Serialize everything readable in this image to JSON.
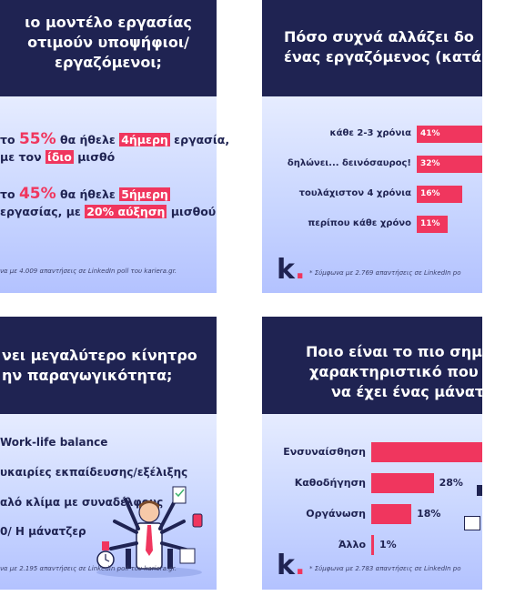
{
  "panels": {
    "tl": {
      "title_lines": [
        "ιο μοντέλο εργασίας",
        "οτιμούν υποψήφιοι/",
        "εργαζόμενοι;"
      ],
      "statements": [
        {
          "prefix": "το",
          "pct": "55%",
          "mid": "θα ήθελε",
          "highlight1": "4ήμερη",
          "after1": "εργασία,",
          "line2_prefix": "με τον",
          "highlight2": "ίδιο",
          "line2_after": "μισθό"
        },
        {
          "prefix": "το",
          "pct": "45%",
          "mid": "θα ήθελε",
          "highlight1": "5ήμερη",
          "after1": "",
          "line2_prefix": "εργασίας, με",
          "highlight2": "20% αύξηση",
          "line2_after": "μισθού"
        }
      ],
      "footnote": "να με 4.009 απαντήσεις σε LinkedIn poll του kariera.gr."
    },
    "tr": {
      "title_lines": [
        "Πόσο συχνά αλλάζει δο",
        "ένας εργαζόμενος (κατά"
      ],
      "logo": "k",
      "footnote": "* Σύμφωνα με 2.769 απαντήσεις σε LinkedIn po"
    },
    "bl": {
      "title_lines": [
        "νει μεγαλύτερο κίνητρο",
        "ην παραγωγικότητα;"
      ],
      "items": [
        "Work-life balance",
        "υκαιρίες εκπαίδευσης/εξέλιξης",
        "αλό κλίμα με συναδέλφους",
        "0/ Η μάνατζερ"
      ],
      "footnote": "να με 2.195 απαντήσεις σε LinkedIn poll του kariera.gr."
    },
    "br": {
      "title_lines": [
        "Ποιο είναι το πιο σημαν",
        "χαρακτηριστικό που πρ",
        "να έχει ένας μάνατζε"
      ],
      "logo": "k",
      "footnote": "* Σύμφωνα με 2.783 απαντήσεις σε LinkedIn po"
    }
  },
  "chart_data": [
    {
      "type": "bar",
      "orientation": "horizontal",
      "title": "Πόσο συχνά αλλάζει δο… ένας εργαζόμενος (κατά…",
      "categories": [
        "κάθε 2-3 χρόνια",
        "δηλώνει... δεινόσαυρος!",
        "τουλάχιστον 4 χρόνια",
        "περίπου κάθε χρόνο"
      ],
      "values": [
        41,
        32,
        16,
        11
      ],
      "value_labels": [
        "41%",
        "32%",
        "16%",
        "11%"
      ],
      "color": "#f0365e"
    },
    {
      "type": "bar",
      "orientation": "horizontal",
      "title": "Ποιο είναι το πιο σημαν… χαρακτηριστικό που πρ… να έχει ένας μάνατζε…",
      "categories": [
        "Ενσυναίσθηση",
        "Καθοδήγηση",
        "Οργάνωση",
        "Άλλο"
      ],
      "values": [
        53,
        28,
        18,
        1
      ],
      "value_labels": [
        "",
        "28%",
        "18%",
        "1%"
      ],
      "color": "#f0365e"
    }
  ]
}
